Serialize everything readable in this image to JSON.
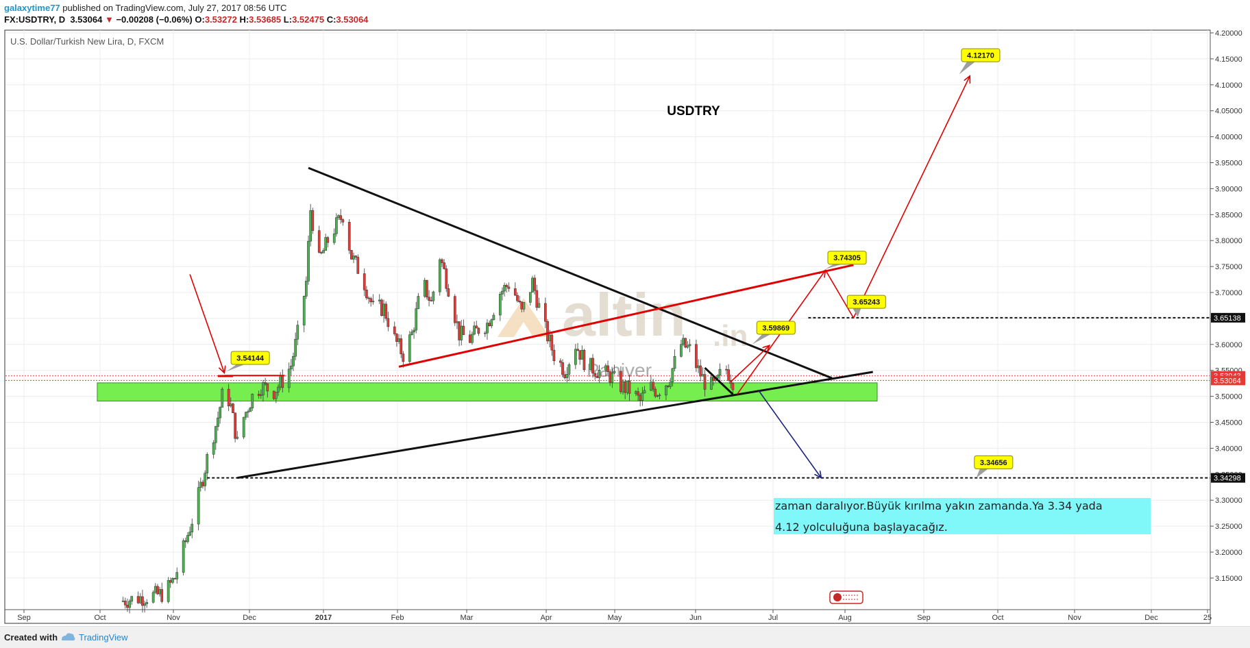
{
  "header": {
    "user": "galaxytime77",
    "published": "published on TradingView.com, July 27, 2017 08:56 UTC",
    "symbol": "FX:USDTRY, D",
    "last": "3.53064",
    "change_arrow": "▼",
    "change": "−0.00208 (−0.06%)",
    "o_label": "O:",
    "o_val": "3.53272",
    "h_label": "H:",
    "h_val": "3.53685",
    "l_label": "L:",
    "l_val": "3.52475",
    "c_label": "C:",
    "c_val": "3.53064"
  },
  "footer": {
    "created": "Created with",
    "brand": "TradingView"
  },
  "chart_title": "U.S. Dollar/Turkish New Lira, D, FXCM",
  "watermark": {
    "main": "altin",
    "suffix": ".in",
    "sub": "Paniver"
  },
  "colors": {
    "up": "#4caf50",
    "down": "#e53935",
    "zone": "#76ee50",
    "note": "#80f8fa",
    "label": "#ffff00"
  },
  "chart_data": {
    "type": "candlestick",
    "title": "USDTRY",
    "ylim": [
      3.1,
      4.2
    ],
    "y_ticks": [
      "4.20000",
      "4.15000",
      "4.10000",
      "4.05000",
      "4.00000",
      "3.95000",
      "3.90000",
      "3.85000",
      "3.80000",
      "3.75000",
      "3.70000",
      "3.65000",
      "3.60000",
      "3.55000",
      "3.50000",
      "3.45000",
      "3.40000",
      "3.35000",
      "3.30000",
      "3.25000",
      "3.20000",
      "3.15000"
    ],
    "x_ticks": [
      "Sep",
      "Oct",
      "Nov",
      "Dec",
      "2017",
      "Feb",
      "Mar",
      "Apr",
      "May",
      "Jun",
      "Jul",
      "Aug",
      "Sep",
      "Oct",
      "Nov",
      "Dec",
      "25"
    ],
    "price_path": [
      [
        "2016-10-15",
        3.105
      ],
      [
        "2016-11-05",
        3.12
      ],
      [
        "2016-11-10",
        3.15
      ],
      [
        "2016-11-15",
        3.22
      ],
      [
        "2016-11-20",
        3.29
      ],
      [
        "2016-11-25",
        3.38
      ],
      [
        "2016-11-30",
        3.46
      ],
      [
        "2016-12-03",
        3.52
      ],
      [
        "2016-12-06",
        3.48
      ],
      [
        "2016-12-09",
        3.41
      ],
      [
        "2016-12-12",
        3.46
      ],
      [
        "2016-12-16",
        3.5
      ],
      [
        "2016-12-20",
        3.52
      ],
      [
        "2016-12-26",
        3.51
      ],
      [
        "2016-12-30",
        3.53
      ],
      [
        "2017-01-03",
        3.56
      ],
      [
        "2017-01-06",
        3.62
      ],
      [
        "2017-01-10",
        3.72
      ],
      [
        "2017-01-12",
        3.86
      ],
      [
        "2017-01-16",
        3.76
      ],
      [
        "2017-01-20",
        3.8
      ],
      [
        "2017-01-24",
        3.83
      ],
      [
        "2017-01-27",
        3.85
      ],
      [
        "2017-01-31",
        3.77
      ],
      [
        "2017-02-05",
        3.73
      ],
      [
        "2017-02-10",
        3.67
      ],
      [
        "2017-02-15",
        3.67
      ],
      [
        "2017-02-20",
        3.61
      ],
      [
        "2017-02-24",
        3.58
      ],
      [
        "2017-02-28",
        3.62
      ],
      [
        "2017-03-05",
        3.72
      ],
      [
        "2017-03-09",
        3.68
      ],
      [
        "2017-03-13",
        3.77
      ],
      [
        "2017-03-17",
        3.71
      ],
      [
        "2017-03-22",
        3.62
      ],
      [
        "2017-03-27",
        3.61
      ],
      [
        "2017-03-31",
        3.63
      ],
      [
        "2017-04-04",
        3.64
      ],
      [
        "2017-04-10",
        3.7
      ],
      [
        "2017-04-15",
        3.72
      ],
      [
        "2017-04-20",
        3.66
      ],
      [
        "2017-04-25",
        3.72
      ],
      [
        "2017-04-30",
        3.64
      ],
      [
        "2017-05-05",
        3.58
      ],
      [
        "2017-05-10",
        3.55
      ],
      [
        "2017-05-15",
        3.6
      ],
      [
        "2017-05-20",
        3.56
      ],
      [
        "2017-05-25",
        3.55
      ],
      [
        "2017-05-31",
        3.54
      ],
      [
        "2017-06-05",
        3.52
      ],
      [
        "2017-06-10",
        3.51
      ],
      [
        "2017-06-14",
        3.49
      ],
      [
        "2017-06-18",
        3.52
      ],
      [
        "2017-06-22",
        3.51
      ],
      [
        "2017-06-27",
        3.53
      ],
      [
        "2017-07-03",
        3.6
      ],
      [
        "2017-07-07",
        3.59
      ],
      [
        "2017-07-11",
        3.55
      ],
      [
        "2017-07-15",
        3.52
      ],
      [
        "2017-07-19",
        3.52
      ],
      [
        "2017-07-23",
        3.56
      ],
      [
        "2017-07-27",
        3.53
      ]
    ],
    "trendlines": [
      {
        "name": "upper",
        "color": "#111111",
        "points": [
          [
            "2017-01-11",
            3.94
          ],
          [
            "2017-09-11",
            3.535
          ]
        ]
      },
      {
        "name": "lower",
        "color": "#111111",
        "points": [
          [
            "2016-12-09",
            3.343
          ],
          [
            "2017-09-30",
            3.547
          ]
        ]
      },
      {
        "name": "channel",
        "color": "#e00000",
        "points": [
          [
            "2017-02-22",
            3.557
          ],
          [
            "2017-09-21",
            3.753
          ]
        ]
      },
      {
        "name": "small",
        "color": "#111111",
        "points": [
          [
            "2017-07-14",
            3.555
          ],
          [
            "2017-07-27",
            3.504
          ]
        ]
      },
      {
        "name": "arrow-in",
        "color": "#e00000",
        "points": [
          [
            "2016-11-17",
            3.735
          ],
          [
            "2016-12-03",
            3.545
          ]
        ]
      }
    ],
    "zone": {
      "from": "2016-10-05",
      "to": "2017-10-02",
      "low": 3.491,
      "high": 3.526,
      "color": "#76ee50"
    },
    "levels": [
      {
        "price": 3.65138,
        "from": "2017-08-31",
        "label": "3.65138"
      },
      {
        "price": 3.34298,
        "from": "2016-11-25",
        "label": "3.34298"
      }
    ],
    "current_prices": [
      {
        "price": 3.53943,
        "label": "3.53943"
      },
      {
        "price": 3.53064,
        "label": "3.53064"
      }
    ],
    "paths": [
      {
        "color": "#e00000",
        "points": [
          [
            "2017-07-29",
            3.504
          ],
          [
            "2017-09-08",
            3.743
          ],
          [
            "2017-09-21",
            3.651
          ],
          [
            "2017-11-14",
            4.117
          ]
        ],
        "heads": [
          1,
          3
        ]
      },
      {
        "color": "#e00000",
        "points": [
          [
            "2017-07-26",
            3.528
          ],
          [
            "2017-08-13",
            3.598
          ]
        ],
        "heads": [
          1
        ]
      },
      {
        "color": "#1a237e",
        "points": [
          [
            "2017-08-08",
            3.511
          ],
          [
            "2017-09-06",
            3.343
          ]
        ],
        "heads": [
          1
        ]
      }
    ],
    "callouts": [
      {
        "text": "3.54144",
        "x": "2016-12-15",
        "y": 3.574,
        "px": "2016-12-04",
        "py": 3.548
      },
      {
        "text": "3.59869",
        "x": "2017-08-16",
        "y": 3.632,
        "px": "2017-08-05",
        "py": 3.6
      },
      {
        "text": "3.74305",
        "x": "2017-09-18",
        "y": 3.767,
        "px": "2017-09-08",
        "py": 3.745
      },
      {
        "text": "3.65243",
        "x": "2017-09-27",
        "y": 3.682,
        "px": "2017-09-23",
        "py": 3.653
      },
      {
        "text": "4.12170",
        "x": "2017-11-19",
        "y": 4.157,
        "px": "2017-11-09",
        "py": 4.12
      },
      {
        "text": "3.34656",
        "x": "2017-11-25",
        "y": 3.373,
        "px": "2017-11-17",
        "py": 3.343
      }
    ],
    "note": "zaman daralıyor.Büyük kırılma yakın zamanda.Ya 3.34 yada 4.12 yolculuğuna başlayacağız."
  }
}
